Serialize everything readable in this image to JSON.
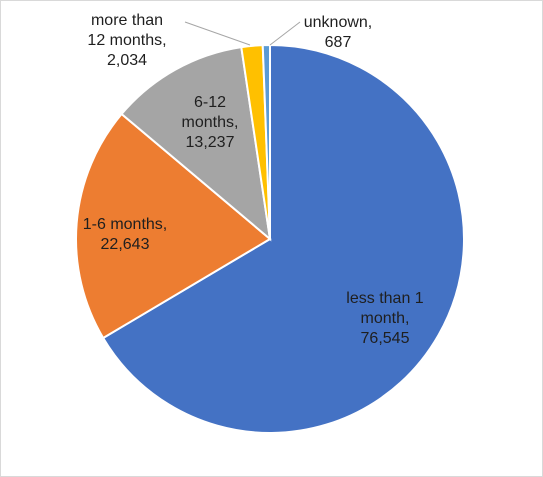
{
  "chart_data": {
    "type": "pie",
    "title": "",
    "categories": [
      "less than 1 month",
      "1-6 months",
      "6-12 months",
      "more than 12 months",
      "unknown"
    ],
    "values": [
      76545,
      22643,
      13237,
      2034,
      687
    ],
    "value_labels": [
      "76,545",
      "22,643",
      "13,237",
      "2,034",
      "687"
    ],
    "colors": [
      "#4472C4",
      "#ED7D31",
      "#A5A5A5",
      "#FFC000",
      "#5B9BD5"
    ],
    "start": "12 o'clock",
    "direction": "clockwise",
    "legend": "none",
    "data_labels": "category name and value",
    "label_lines": [
      [
        "less than 1",
        "month,",
        "76,545"
      ],
      [
        "1-6 months,",
        "22,643"
      ],
      [
        "6-12",
        "months,",
        "13,237"
      ],
      [
        "more than",
        "12 months,",
        "2,034"
      ],
      [
        "unknown,",
        "687"
      ]
    ]
  }
}
